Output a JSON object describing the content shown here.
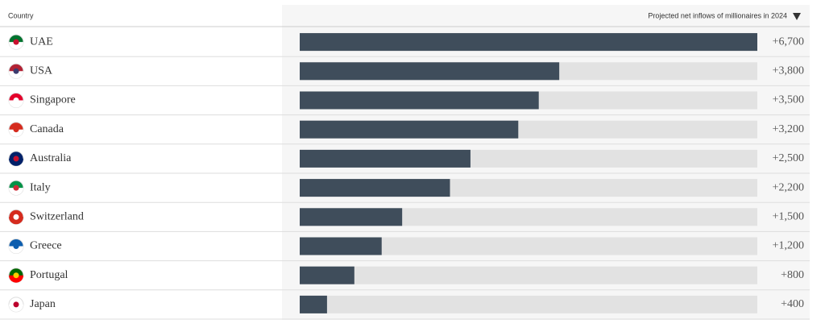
{
  "chart_data": {
    "type": "bar",
    "category_header": "Country",
    "value_header": "Projected net inflows of millionaires in 2024",
    "categories": [
      "UAE",
      "USA",
      "Singapore",
      "Canada",
      "Australia",
      "Italy",
      "Switzerland",
      "Greece",
      "Portugal",
      "Japan"
    ],
    "values": [
      6700,
      3800,
      3500,
      3200,
      2500,
      2200,
      1500,
      1200,
      800,
      400
    ],
    "value_labels": [
      "+6,700",
      "+3,800",
      "+3,500",
      "+3,200",
      "+2,500",
      "+2,200",
      "+1,500",
      "+1,200",
      "+800",
      "+400"
    ],
    "xlim": [
      0,
      6700
    ],
    "color": "#3f4d5b",
    "track_color": "#e2e2e2"
  }
}
